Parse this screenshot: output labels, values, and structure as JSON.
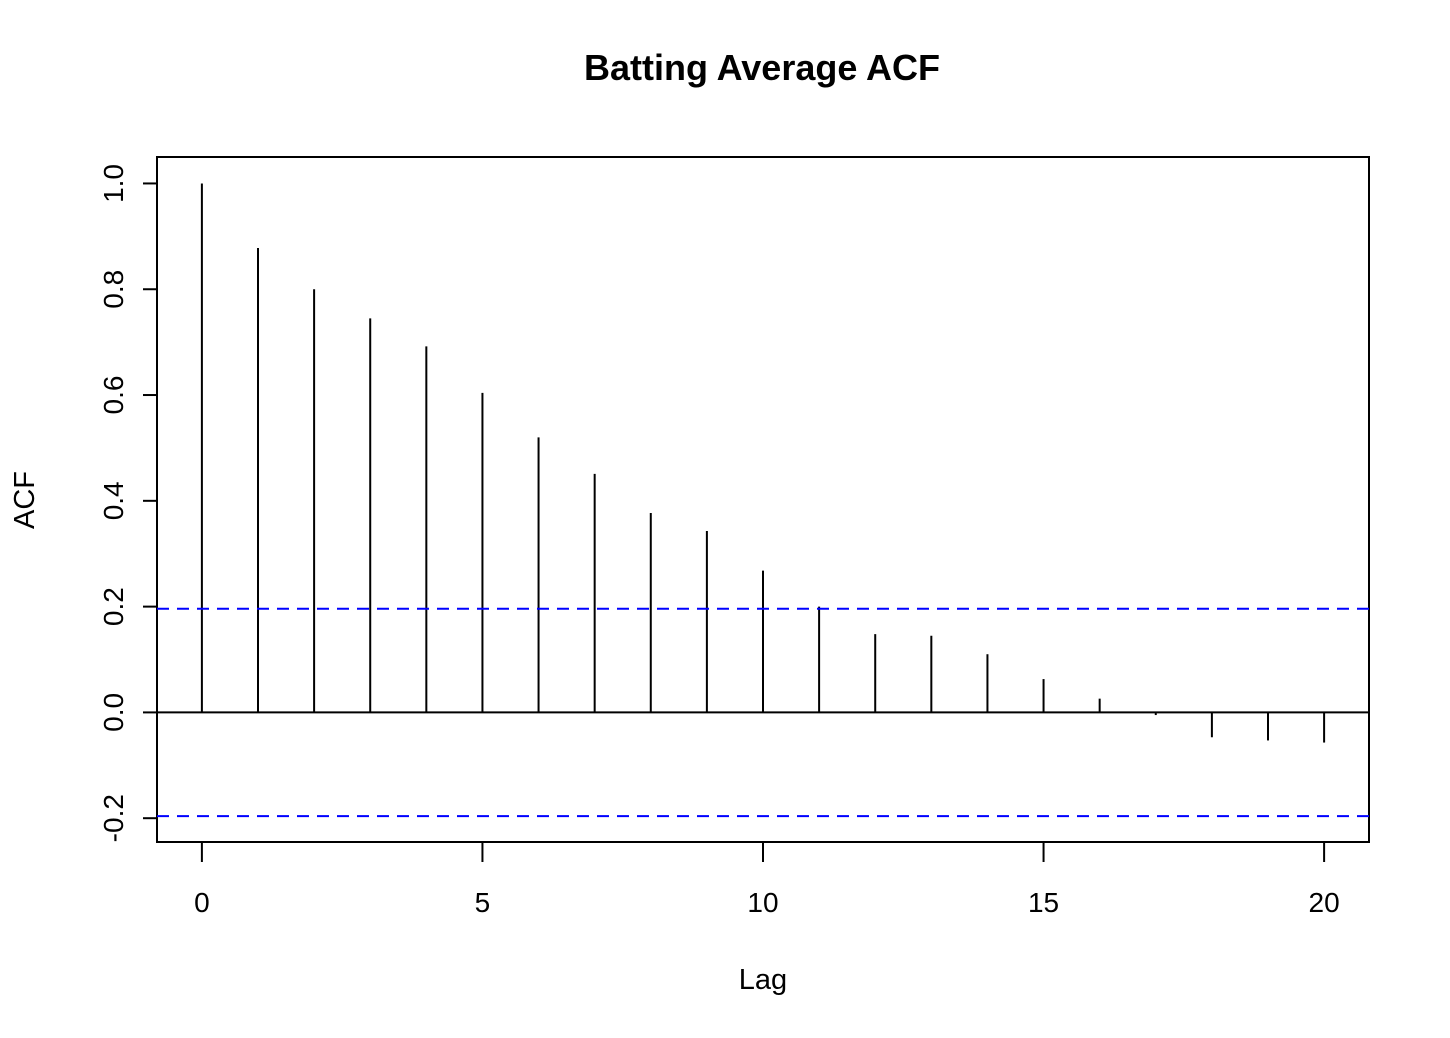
{
  "chart_data": {
    "type": "bar",
    "title": "Batting Average ACF",
    "xlabel": "Lag",
    "ylabel": "ACF",
    "x": [
      0,
      1,
      2,
      3,
      4,
      5,
      6,
      7,
      8,
      9,
      10,
      11,
      12,
      13,
      14,
      15,
      16,
      17,
      18,
      19,
      20
    ],
    "values": [
      1.0,
      0.878,
      0.8,
      0.745,
      0.692,
      0.604,
      0.52,
      0.451,
      0.377,
      0.343,
      0.268,
      0.2,
      0.148,
      0.145,
      0.11,
      0.063,
      0.026,
      -0.005,
      -0.047,
      -0.053,
      -0.057
    ],
    "confidence_band": [
      0.196,
      -0.196
    ],
    "xlim": [
      -0.8,
      20.8
    ],
    "ylim": [
      -0.245,
      1.05
    ],
    "x_ticks": [
      "0",
      "5",
      "10",
      "15",
      "20"
    ],
    "y_ticks": [
      "-0.2",
      "0.0",
      "0.2",
      "0.4",
      "0.6",
      "0.8",
      "1.0"
    ],
    "zero_line": true,
    "grid": false,
    "colors": {
      "bars": "#000000",
      "confidence": "#0000ff",
      "axes": "#000000"
    }
  }
}
